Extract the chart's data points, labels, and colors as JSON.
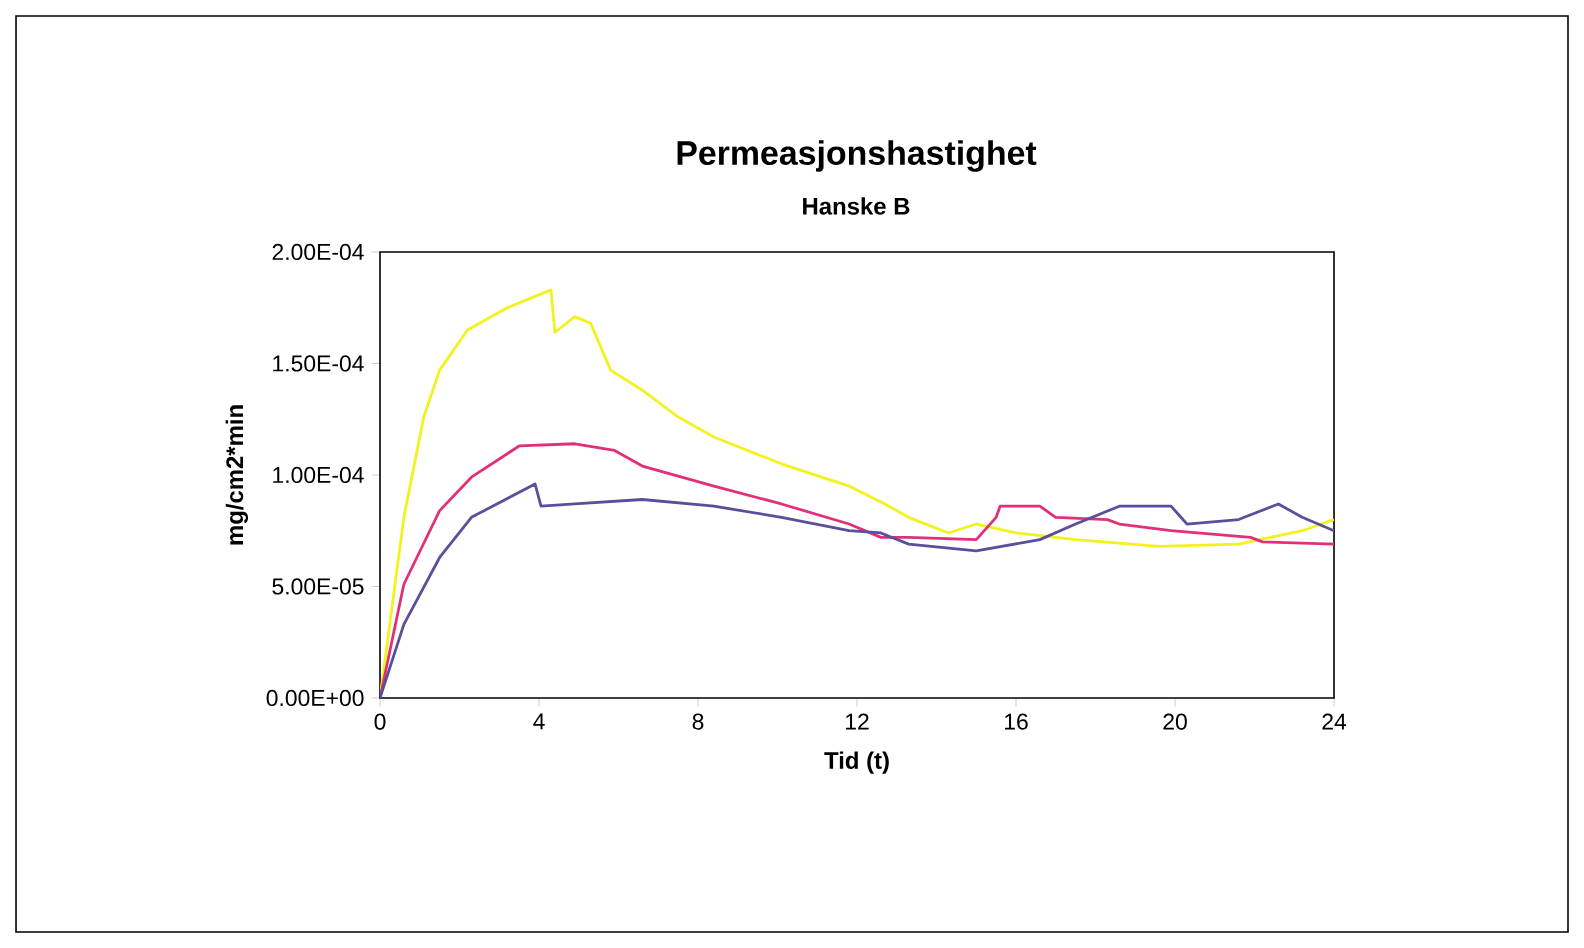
{
  "chart_data": {
    "type": "line",
    "title": "Permeasjonshastighet",
    "subtitle": "Hanske B",
    "xlabel": "Tid (t)",
    "ylabel": "mg/cm2*min",
    "xlim": [
      0,
      24
    ],
    "xticks": [
      0,
      4,
      8,
      12,
      16,
      20,
      24
    ],
    "ylim": [
      0,
      0.0002
    ],
    "yticks": [
      {
        "value": 0,
        "label": "0.00E+00"
      },
      {
        "value": 5e-05,
        "label": "5.00E-05"
      },
      {
        "value": 0.0001,
        "label": "1.00E-04"
      },
      {
        "value": 0.00015,
        "label": "1.50E-04"
      },
      {
        "value": 0.0002,
        "label": "2.00E-04"
      }
    ],
    "grid": false,
    "marker": "none",
    "line_style": "solid",
    "series": [
      {
        "color": "#f2f21e",
        "x": [
          0,
          0.6,
          1.1,
          1.5,
          2.2,
          3.2,
          4.3,
          4.4,
          4.9,
          5.3,
          5.8,
          6.6,
          7.5,
          8.4,
          10.1,
          11.8,
          12.7,
          13.3,
          14.3,
          15,
          16,
          17.5,
          19.6,
          21.6,
          23.2,
          24
        ],
        "values": [
          0,
          8.1e-05,
          0.000126,
          0.000147,
          0.000165,
          0.000175,
          0.000183,
          0.000164,
          0.000171,
          0.000168,
          0.000147,
          0.000138,
          0.000126,
          0.000117,
          0.000105,
          9.5e-05,
          8.7e-05,
          8.1e-05,
          7.4e-05,
          7.8e-05,
          7.4e-05,
          7.1e-05,
          6.8e-05,
          6.9e-05,
          7.5e-05,
          8e-05
        ]
      },
      {
        "color": "#e0307a",
        "x": [
          0,
          0.6,
          1.5,
          2.3,
          3.5,
          4.9,
          5.9,
          6.6,
          8.4,
          10.1,
          11.8,
          12.6,
          13.3,
          15,
          15.5,
          15.6,
          16.6,
          17,
          18.3,
          18.6,
          19.9,
          21.9,
          22.2,
          24
        ],
        "values": [
          0,
          5.1e-05,
          8.4e-05,
          9.9e-05,
          0.000113,
          0.000114,
          0.000111,
          0.000104,
          9.5e-05,
          8.7e-05,
          7.8e-05,
          7.2e-05,
          7.2e-05,
          7.1e-05,
          8.1e-05,
          8.6e-05,
          8.6e-05,
          8.1e-05,
          8e-05,
          7.8e-05,
          7.5e-05,
          7.2e-05,
          7e-05,
          6.9e-05
        ]
      },
      {
        "color": "#5a4f9a",
        "x": [
          0,
          0.6,
          1.5,
          2.3,
          3.9,
          4.05,
          4.9,
          6.6,
          8.4,
          10.1,
          11.8,
          12.6,
          13.3,
          15,
          16.6,
          17.5,
          18.6,
          19.9,
          20.3,
          21.6,
          22.6,
          23.2,
          24
        ],
        "values": [
          0,
          3.3e-05,
          6.3e-05,
          8.1e-05,
          9.6e-05,
          8.6e-05,
          8.7e-05,
          8.9e-05,
          8.6e-05,
          8.1e-05,
          7.5e-05,
          7.4e-05,
          6.9e-05,
          6.6e-05,
          7.1e-05,
          7.8e-05,
          8.6e-05,
          8.6e-05,
          7.8e-05,
          8e-05,
          8.7e-05,
          8.1e-05,
          7.5e-05
        ]
      }
    ]
  }
}
